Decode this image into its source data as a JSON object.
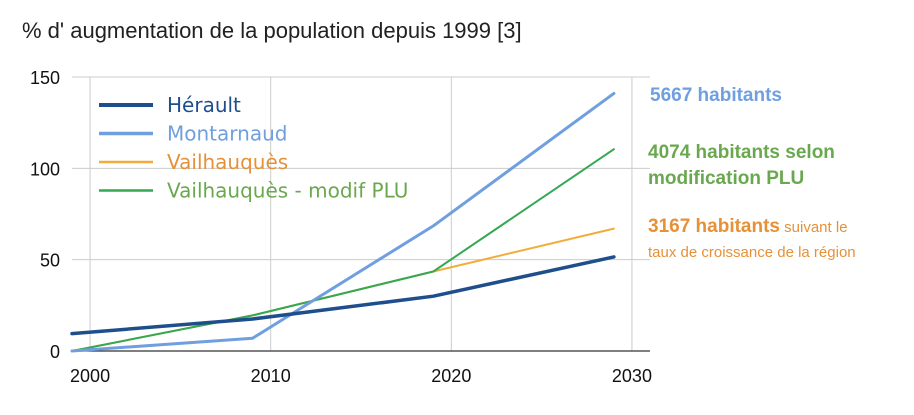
{
  "chart_data": {
    "type": "line",
    "title": "% d' augmentation de la population depuis 1999 [3]",
    "xlabel": "",
    "ylabel": "",
    "xlim": [
      1999,
      2031
    ],
    "ylim": [
      0,
      150
    ],
    "x_ticks": [
      "2000",
      "2010",
      "2020",
      "2030"
    ],
    "y_ticks": [
      "0",
      "50",
      "100",
      "150"
    ],
    "grid": true,
    "legend_position": "top-left",
    "series": [
      {
        "name": "Hérault",
        "color": "#1f4e8c",
        "stroke_width": 3.5,
        "points": [
          [
            1999,
            9.5
          ],
          [
            2009,
            17.5
          ],
          [
            2019,
            30
          ],
          [
            2029,
            51.5
          ]
        ]
      },
      {
        "name": "Montarnaud",
        "color": "#6f9fdf",
        "stroke_width": 3,
        "points": [
          [
            1999,
            0
          ],
          [
            2009,
            7
          ],
          [
            2019,
            68.5
          ],
          [
            2029,
            141
          ]
        ]
      },
      {
        "name": "Vailhauquès",
        "color": "#f2ac3a",
        "stroke_width": 2,
        "points": [
          [
            1999,
            0
          ],
          [
            2009,
            19.5
          ],
          [
            2019,
            43.5
          ],
          [
            2029,
            67
          ]
        ]
      },
      {
        "name": "Vailhauquès - modif PLU",
        "color": "#34a853",
        "stroke_width": 2,
        "points": [
          [
            1999,
            0
          ],
          [
            2009,
            19.5
          ],
          [
            2019,
            43.5
          ],
          [
            2029,
            110.5
          ]
        ]
      }
    ],
    "annotations": [
      {
        "id": "montarnaud",
        "color": "#6f9fdf",
        "bold": "5667 habitants"
      },
      {
        "id": "plu",
        "color": "#6aa84f",
        "bold_lines": [
          "4074 habitants selon",
          "modification PLU"
        ]
      },
      {
        "id": "vailhauques",
        "color": "#e69138",
        "bold": "3167 habitants",
        "normal_inline": " suivant le",
        "normal_line2": "taux de croissance de la région"
      }
    ]
  },
  "colors": {
    "grid": "#cccccc",
    "axis": "#333333",
    "title": "#212121",
    "legend_text_herault": "#1f4e8c",
    "legend_text_montarnaud": "#6f9fdf",
    "legend_text_vailhauques": "#e69138",
    "legend_text_plu": "#6aa84f"
  }
}
